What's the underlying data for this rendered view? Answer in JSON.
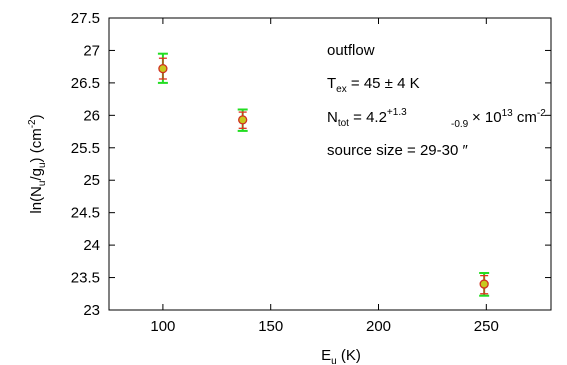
{
  "chart_data": {
    "type": "scatter",
    "xlabel_main": "E",
    "xlabel_sub": "u",
    "xlabel_unit": " (K)",
    "ylabel_parts": {
      "pre": "ln(N",
      "sub1": "u",
      "mid": "/g",
      "sub2": "u",
      "post": ") (cm",
      "sup": "-2",
      "end": ")"
    },
    "xlim": [
      75,
      280
    ],
    "ylim": [
      23,
      27.5
    ],
    "xticks": [
      100,
      150,
      200,
      250
    ],
    "yticks": [
      23,
      23.5,
      24,
      24.5,
      25,
      25.5,
      26,
      26.5,
      27,
      27.5
    ],
    "grid": false,
    "points": [
      {
        "x": 100,
        "y": 26.72,
        "err_red": [
          26.56,
          26.88
        ],
        "err_green": [
          26.5,
          26.95
        ]
      },
      {
        "x": 137,
        "y": 25.93,
        "err_red": [
          25.8,
          26.05
        ],
        "err_green": [
          25.76,
          26.09
        ]
      },
      {
        "x": 249,
        "y": 23.4,
        "err_red": [
          23.25,
          23.53
        ],
        "err_green": [
          23.22,
          23.57
        ]
      }
    ],
    "colors": {
      "marker_fill": "#c8c81e",
      "marker_edge": "#d03020",
      "err_red": "#e03020",
      "err_green": "#22dd22"
    },
    "annotations": {
      "line1": "outflow",
      "tex_main": "T",
      "tex_sub": "ex",
      "tex_rest": " = 45 ± 4 K",
      "ntot_main": "N",
      "ntot_sub": "tot",
      "ntot_eq": " = 4.2",
      "ntot_sup": "+1.3",
      "ntot_sub2": "-0.9",
      "ntot_mult": "× 10",
      "ntot_exp": "13",
      "ntot_unit": " cm",
      "ntot_unit_exp": "-2",
      "line4": "source size = 29-30 ″"
    }
  }
}
